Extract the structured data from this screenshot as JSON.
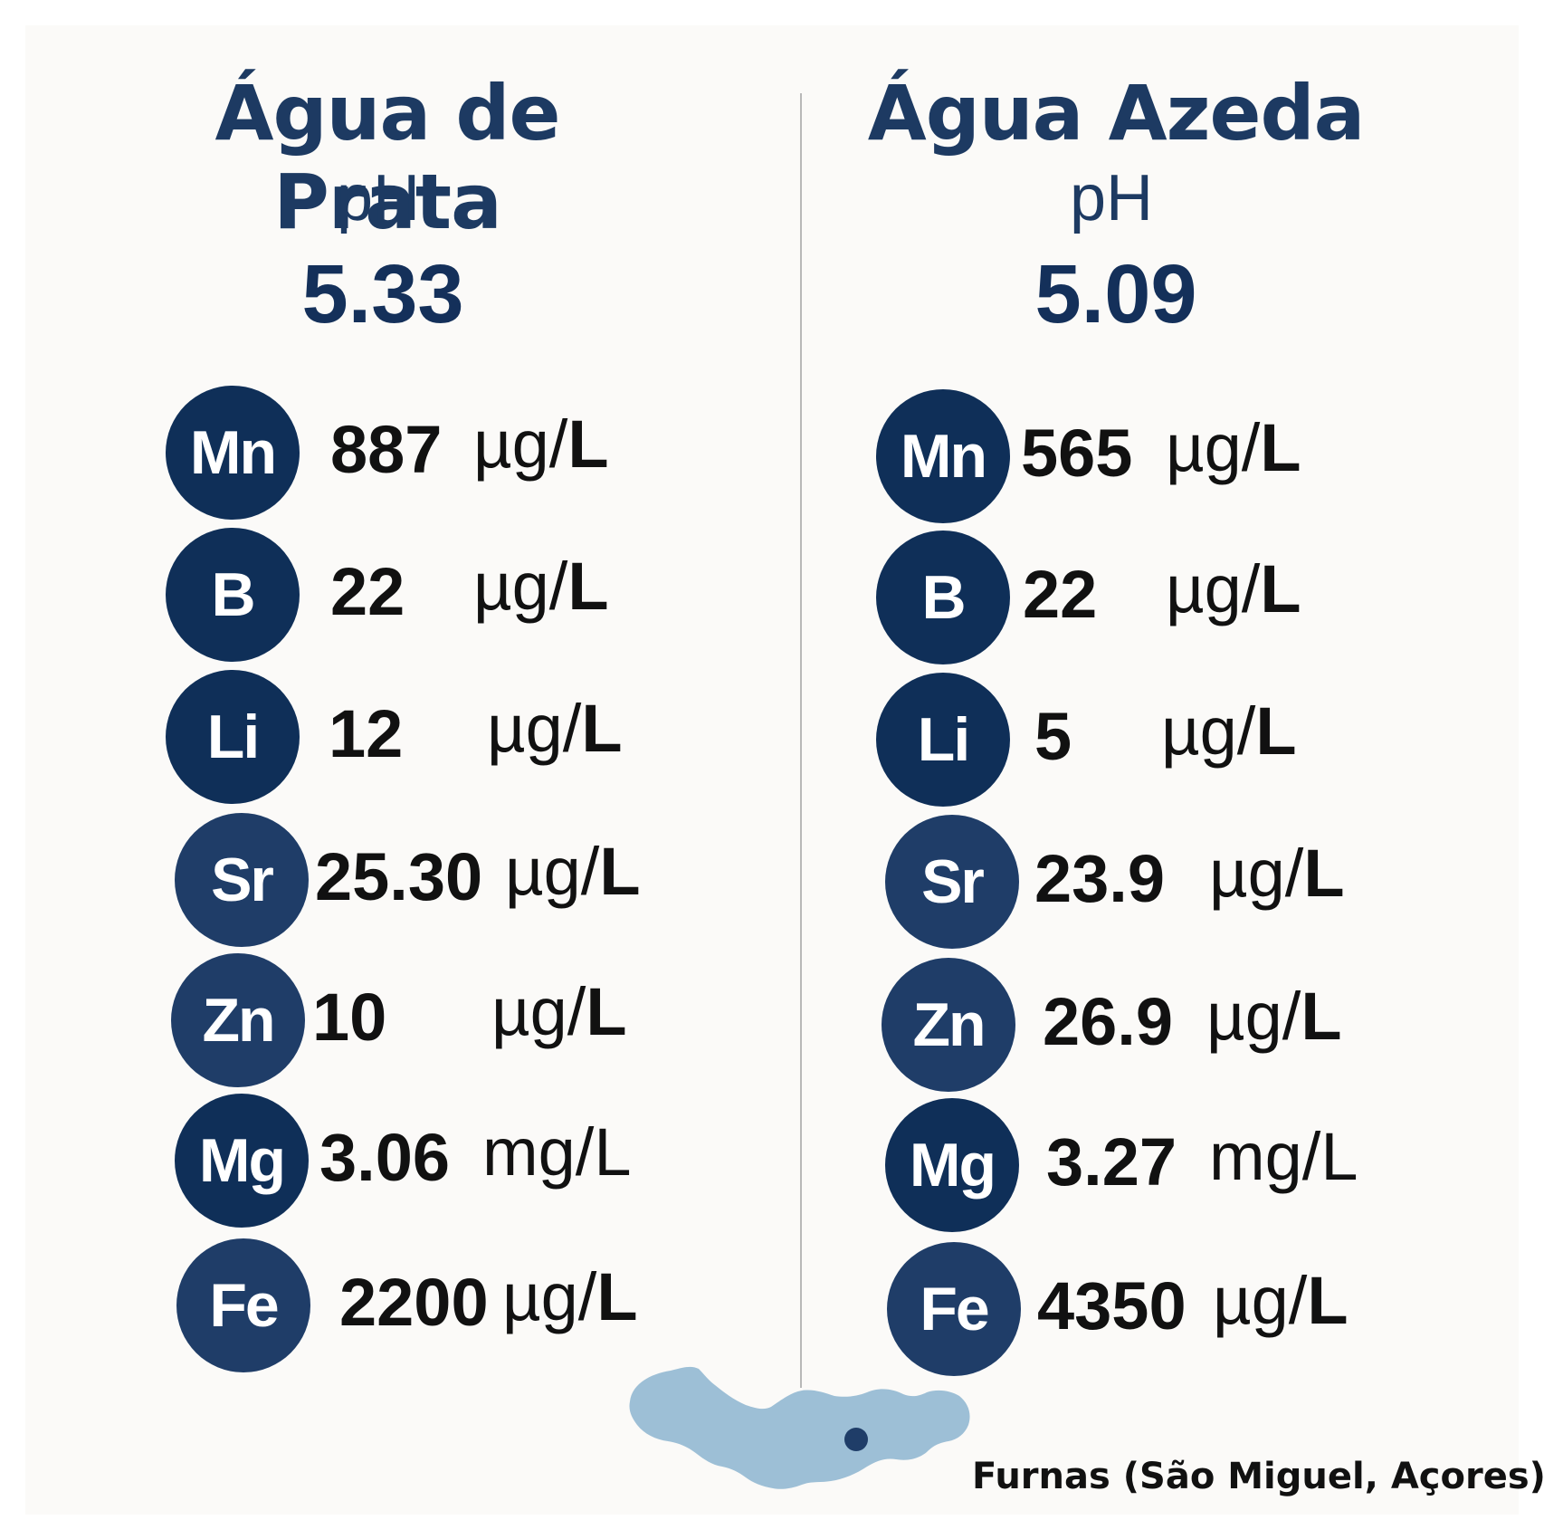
{
  "columns": [
    {
      "title": "Água de Prata",
      "ph_label": "pH",
      "ph_value": "5.33",
      "elements": [
        {
          "symbol": "Mn",
          "value": "887",
          "unit_prefix": "µg/",
          "unit_suffix": "L"
        },
        {
          "symbol": "B",
          "value": "22",
          "unit_prefix": "µg/",
          "unit_suffix": "L"
        },
        {
          "symbol": "Li",
          "value": "12",
          "unit_prefix": "µg/",
          "unit_suffix": "L"
        },
        {
          "symbol": "Sr",
          "value": "25.30",
          "unit_prefix": "µg/",
          "unit_suffix": "L"
        },
        {
          "symbol": "Zn",
          "value": "10",
          "unit_prefix": "µg/",
          "unit_suffix": "L"
        },
        {
          "symbol": "Mg",
          "value": "3.06",
          "unit_prefix": "mg/",
          "unit_suffix": "L"
        },
        {
          "symbol": "Fe",
          "value": "2200",
          "unit_prefix": "µg/",
          "unit_suffix": "L"
        }
      ]
    },
    {
      "title": "Água Azeda",
      "ph_label": "pH",
      "ph_value": "5.09",
      "elements": [
        {
          "symbol": "Mn",
          "value": "565",
          "unit_prefix": "µg/",
          "unit_suffix": "L"
        },
        {
          "symbol": "B",
          "value": "22",
          "unit_prefix": "µg/",
          "unit_suffix": "L"
        },
        {
          "symbol": "Li",
          "value": "5",
          "unit_prefix": "µg/",
          "unit_suffix": "L"
        },
        {
          "symbol": "Sr",
          "value": "23.9",
          "unit_prefix": "µg/",
          "unit_suffix": "L"
        },
        {
          "symbol": "Zn",
          "value": "26.9",
          "unit_prefix": "µg/",
          "unit_suffix": "L"
        },
        {
          "symbol": "Mg",
          "value": "3.27",
          "unit_prefix": "mg/",
          "unit_suffix": "L"
        },
        {
          "symbol": "Fe",
          "value": "4350",
          "unit_prefix": "µg/",
          "unit_suffix": "L"
        }
      ]
    }
  ],
  "location": "Furnas (São Miguel, Açores)",
  "colors": {
    "circle": "#0f2f58",
    "title": "#1d3a62",
    "island": "#9dbfd6",
    "marker": "#1f3d68"
  }
}
